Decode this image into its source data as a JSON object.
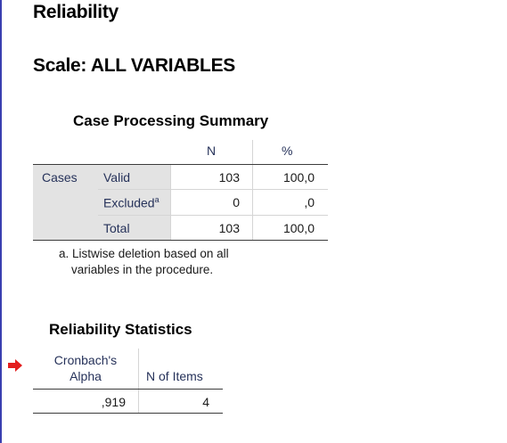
{
  "title": "Reliability",
  "scale_title": "Scale: ALL VARIABLES",
  "case_processing": {
    "title": "Case Processing Summary",
    "col_n": "N",
    "col_pct": "%",
    "row_group": "Cases",
    "rows": [
      {
        "label": "Valid",
        "sup": "",
        "n": "103",
        "pct": "100,0"
      },
      {
        "label": "Excluded",
        "sup": "a",
        "n": "0",
        "pct": ",0"
      },
      {
        "label": "Total",
        "sup": "",
        "n": "103",
        "pct": "100,0"
      }
    ],
    "footnote_line1": "a. Listwise deletion based on all",
    "footnote_line2": "variables in the procedure."
  },
  "reliability": {
    "title": "Reliability Statistics",
    "col_alpha_line1": "Cronbach's",
    "col_alpha_line2": "Alpha",
    "col_items": "N of Items",
    "alpha": ",919",
    "n_items": "4"
  },
  "colors": {
    "accent_border": "#3a3fb0",
    "marker": "#e31e1e",
    "header_text": "#26325a",
    "shade": "#e3e3e3"
  },
  "icons": {
    "marker": "red-arrow-icon"
  }
}
